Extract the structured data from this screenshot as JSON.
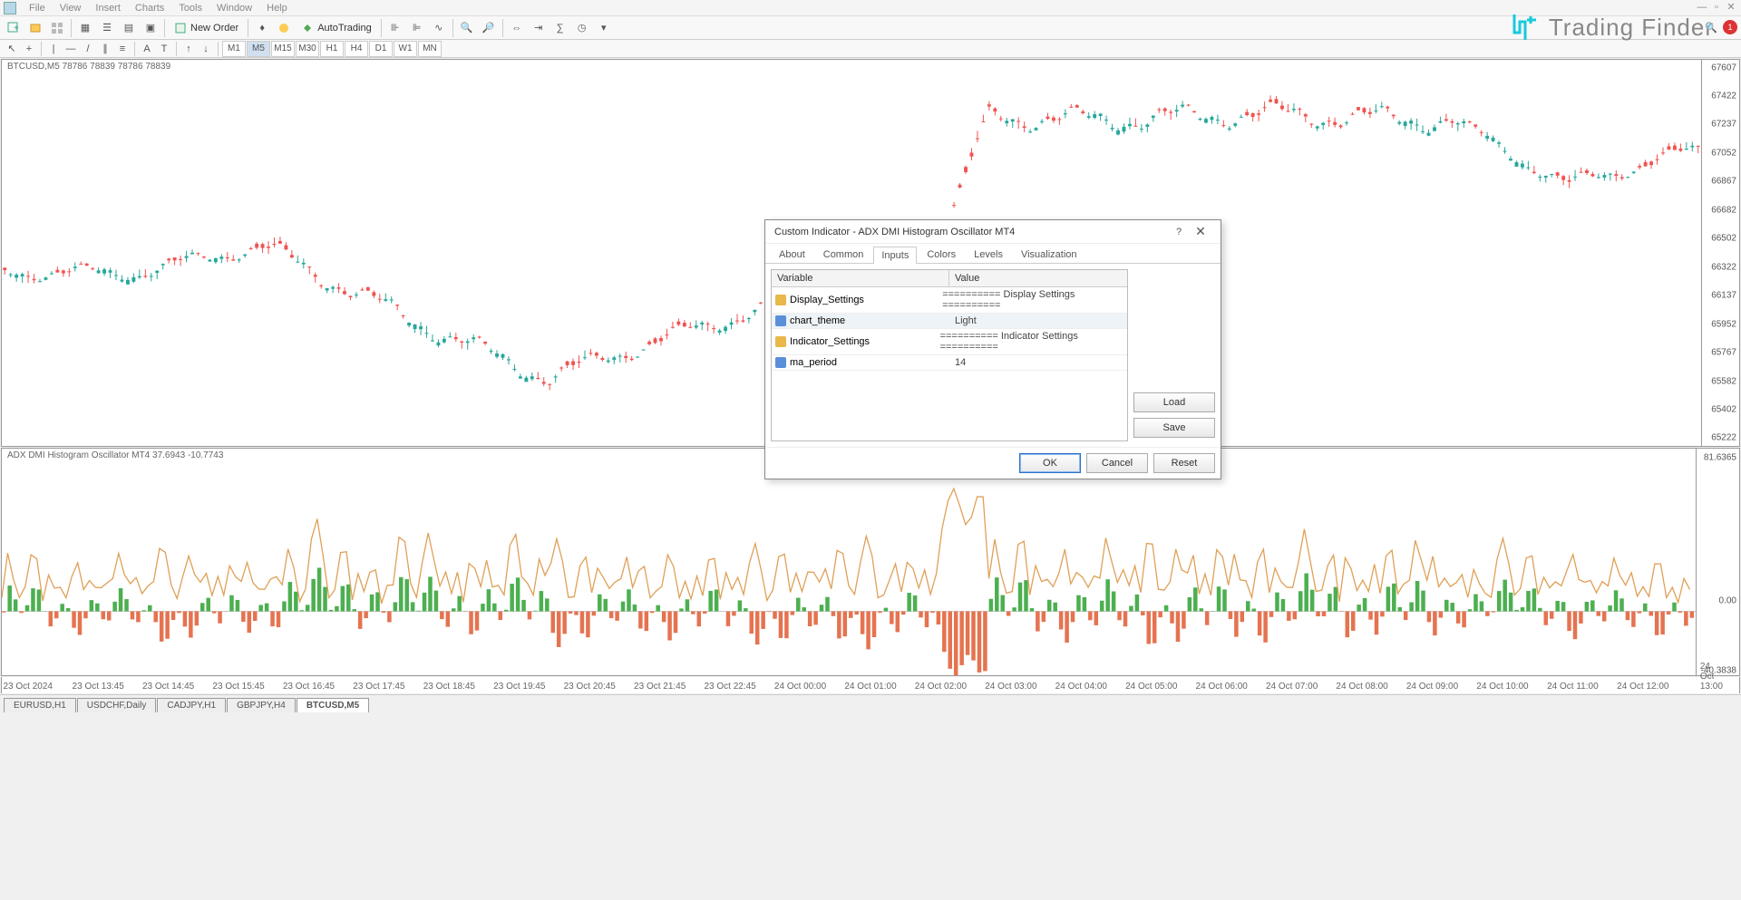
{
  "menu": {
    "items": [
      "File",
      "View",
      "Insert",
      "Charts",
      "Tools",
      "Window",
      "Help"
    ]
  },
  "toolbar": {
    "newOrder": "New Order",
    "autoTrading": "AutoTrading"
  },
  "branding": {
    "text": "Trading Finder",
    "icon_color": "#18c9dc"
  },
  "timeframes": [
    "M1",
    "M5",
    "M15",
    "M30",
    "H1",
    "H4",
    "D1",
    "W1",
    "MN"
  ],
  "activeTimeframe": "M5",
  "chart": {
    "label": "BTCUSD,M5  78786 78839 78786 78839",
    "price_axis": {
      "min": 65222,
      "max": 67607,
      "step": 185,
      "labels": [
        67607,
        67422,
        67237,
        67052,
        66867,
        66682,
        66502,
        66322,
        66137,
        65952,
        65767,
        65582,
        65402,
        65222
      ],
      "color": "#555"
    },
    "candle_up_color": "#26a69a",
    "candle_down_color": "#ef5350",
    "background_color": "#ffffff",
    "candle_width": 5
  },
  "indicator": {
    "label": "ADX DMI Histogram Oscillator MT4 37.6943 -10.7743",
    "line_color": "#e0a058",
    "bar_up_color": "#4caf50",
    "bar_down_color": "#e57350",
    "axis": {
      "top": "81.6365",
      "zero": "0.00",
      "bottom": "-40.3838"
    }
  },
  "time_axis": [
    "23 Oct 2024",
    "23 Oct 13:45",
    "23 Oct 14:45",
    "23 Oct 15:45",
    "23 Oct 16:45",
    "23 Oct 17:45",
    "23 Oct 18:45",
    "23 Oct 19:45",
    "23 Oct 20:45",
    "23 Oct 21:45",
    "23 Oct 22:45",
    "24 Oct 00:00",
    "24 Oct 01:00",
    "24 Oct 02:00",
    "24 Oct 03:00",
    "24 Oct 04:00",
    "24 Oct 05:00",
    "24 Oct 06:00",
    "24 Oct 07:00",
    "24 Oct 08:00",
    "24 Oct 09:00",
    "24 Oct 10:00",
    "24 Oct 11:00",
    "24 Oct 12:00",
    "24 Oct 13:00"
  ],
  "tabs": [
    "EURUSD,H1",
    "USDCHF,Daily",
    "CADJPY,H1",
    "GBPJPY,H4",
    "BTCUSD,M5"
  ],
  "activeTab": "BTCUSD,M5",
  "dialog": {
    "title": "Custom Indicator - ADX DMI Histogram Oscillator MT4",
    "tabs": [
      "About",
      "Common",
      "Inputs",
      "Colors",
      "Levels",
      "Visualization"
    ],
    "activeTab": "Inputs",
    "grid": {
      "headers": [
        "Variable",
        "Value"
      ],
      "rows": [
        {
          "icon": "gold",
          "var": "Display_Settings",
          "val": "========== Display Settings ==========",
          "sel": false
        },
        {
          "icon": "blue",
          "var": "chart_theme",
          "val": "Light",
          "sel": true
        },
        {
          "icon": "gold",
          "var": "Indicator_Settings",
          "val": "========== Indicator Settings ==========",
          "sel": false
        },
        {
          "icon": "blue",
          "var": "ma_period",
          "val": "14",
          "sel": false
        }
      ]
    },
    "sideButtons": [
      "Load",
      "Save"
    ],
    "footButtons": [
      "OK",
      "Cancel",
      "Reset"
    ]
  },
  "notif_count": "1"
}
